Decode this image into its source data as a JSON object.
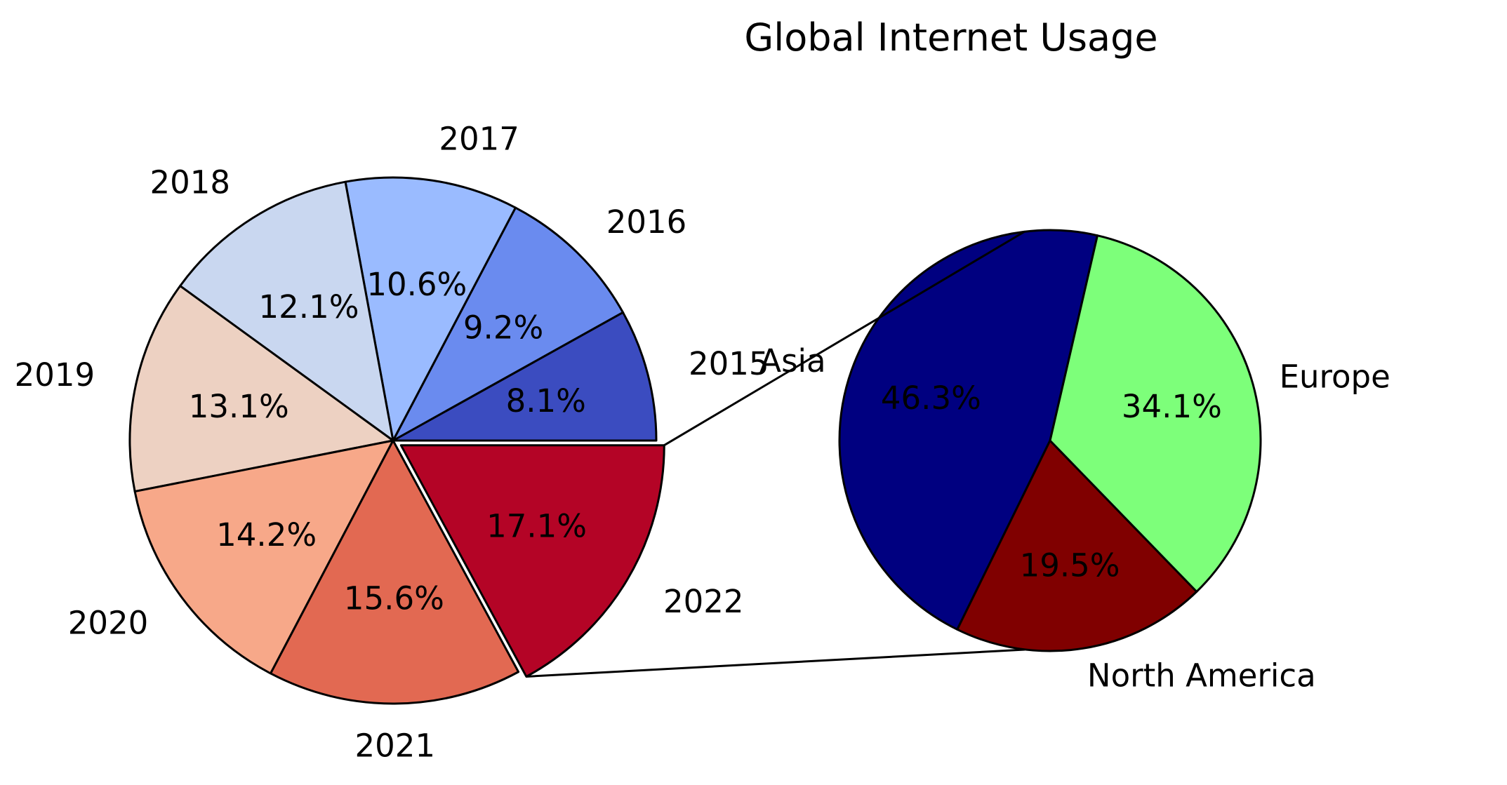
{
  "title": "Global Internet Usage",
  "chart_data": [
    {
      "type": "pie",
      "labels": [
        "2015",
        "2016",
        "2017",
        "2018",
        "2019",
        "2020",
        "2021",
        "2022"
      ],
      "values": [
        8.1,
        9.2,
        10.6,
        12.1,
        13.1,
        14.2,
        15.6,
        17.1
      ],
      "value_labels": [
        "8.1%",
        "9.2%",
        "10.6%",
        "12.1%",
        "13.1%",
        "14.2%",
        "15.6%",
        "17.1%"
      ],
      "colors": [
        "#3b4cc0",
        "#6a8bef",
        "#9abbff",
        "#c9d7f0",
        "#edd1c2",
        "#f7a889",
        "#e26952",
        "#b40426"
      ],
      "exploded": "2022"
    },
    {
      "type": "pie",
      "labels": [
        "Asia",
        "North America",
        "Europe"
      ],
      "values": [
        46.3,
        19.5,
        34.1
      ],
      "value_labels": [
        "46.3%",
        "19.5%",
        "34.1%"
      ],
      "colors": [
        "#000080",
        "#800000",
        "#7dff7a"
      ],
      "detail_of": "2022"
    }
  ]
}
